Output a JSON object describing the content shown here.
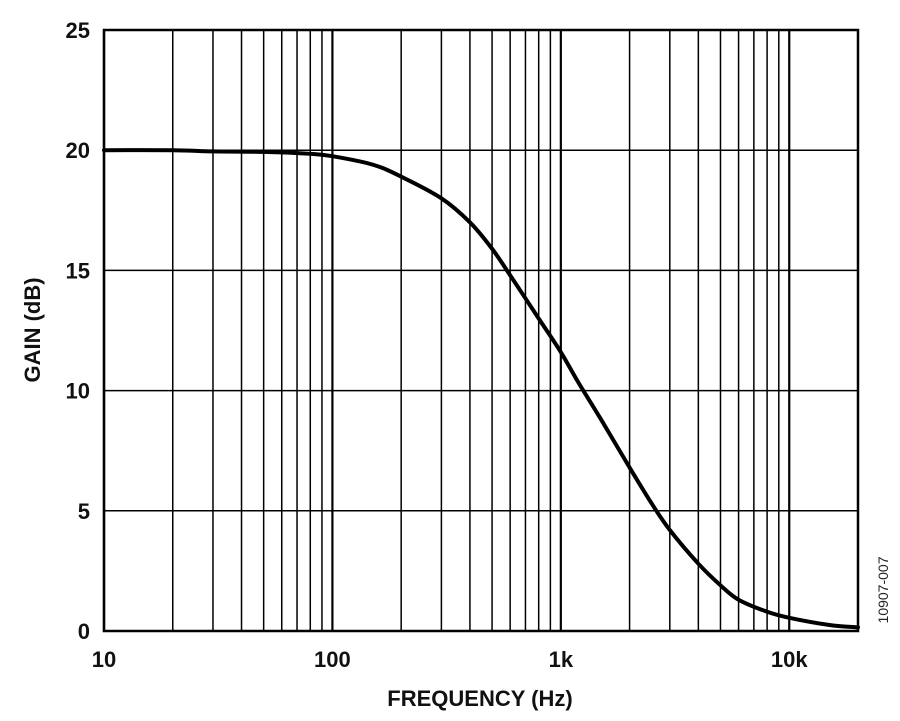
{
  "chart_data": {
    "type": "line",
    "xscale": "log",
    "xlim": [
      10,
      20000
    ],
    "ylim": [
      0,
      25
    ],
    "grid": true,
    "xlabel": "FREQUENCY (Hz)",
    "ylabel": "GAIN (dB)",
    "figure_id": "10907-007",
    "x_ticks": [
      {
        "value": 10,
        "label": "10"
      },
      {
        "value": 100,
        "label": "100"
      },
      {
        "value": 1000,
        "label": "1k"
      },
      {
        "value": 10000,
        "label": "10k"
      }
    ],
    "y_ticks": [
      {
        "value": 0,
        "label": "0"
      },
      {
        "value": 5,
        "label": "5"
      },
      {
        "value": 10,
        "label": "10"
      },
      {
        "value": 15,
        "label": "15"
      },
      {
        "value": 20,
        "label": "20"
      },
      {
        "value": 25,
        "label": "25"
      }
    ],
    "series": [
      {
        "color": "#000000",
        "points": [
          [
            10,
            20.0
          ],
          [
            20,
            20.0
          ],
          [
            30,
            19.95
          ],
          [
            50,
            19.93
          ],
          [
            80,
            19.85
          ],
          [
            100,
            19.75
          ],
          [
            150,
            19.4
          ],
          [
            200,
            18.9
          ],
          [
            300,
            18.0
          ],
          [
            400,
            17.0
          ],
          [
            500,
            15.9
          ],
          [
            600,
            14.8
          ],
          [
            800,
            13.0
          ],
          [
            1000,
            11.6
          ],
          [
            1200,
            10.3
          ],
          [
            1500,
            8.8
          ],
          [
            2000,
            6.8
          ],
          [
            2500,
            5.3
          ],
          [
            3000,
            4.2
          ],
          [
            4000,
            2.8
          ],
          [
            5000,
            1.9
          ],
          [
            6000,
            1.3
          ],
          [
            8000,
            0.8
          ],
          [
            10000,
            0.55
          ],
          [
            15000,
            0.25
          ],
          [
            20000,
            0.15
          ]
        ]
      }
    ]
  }
}
